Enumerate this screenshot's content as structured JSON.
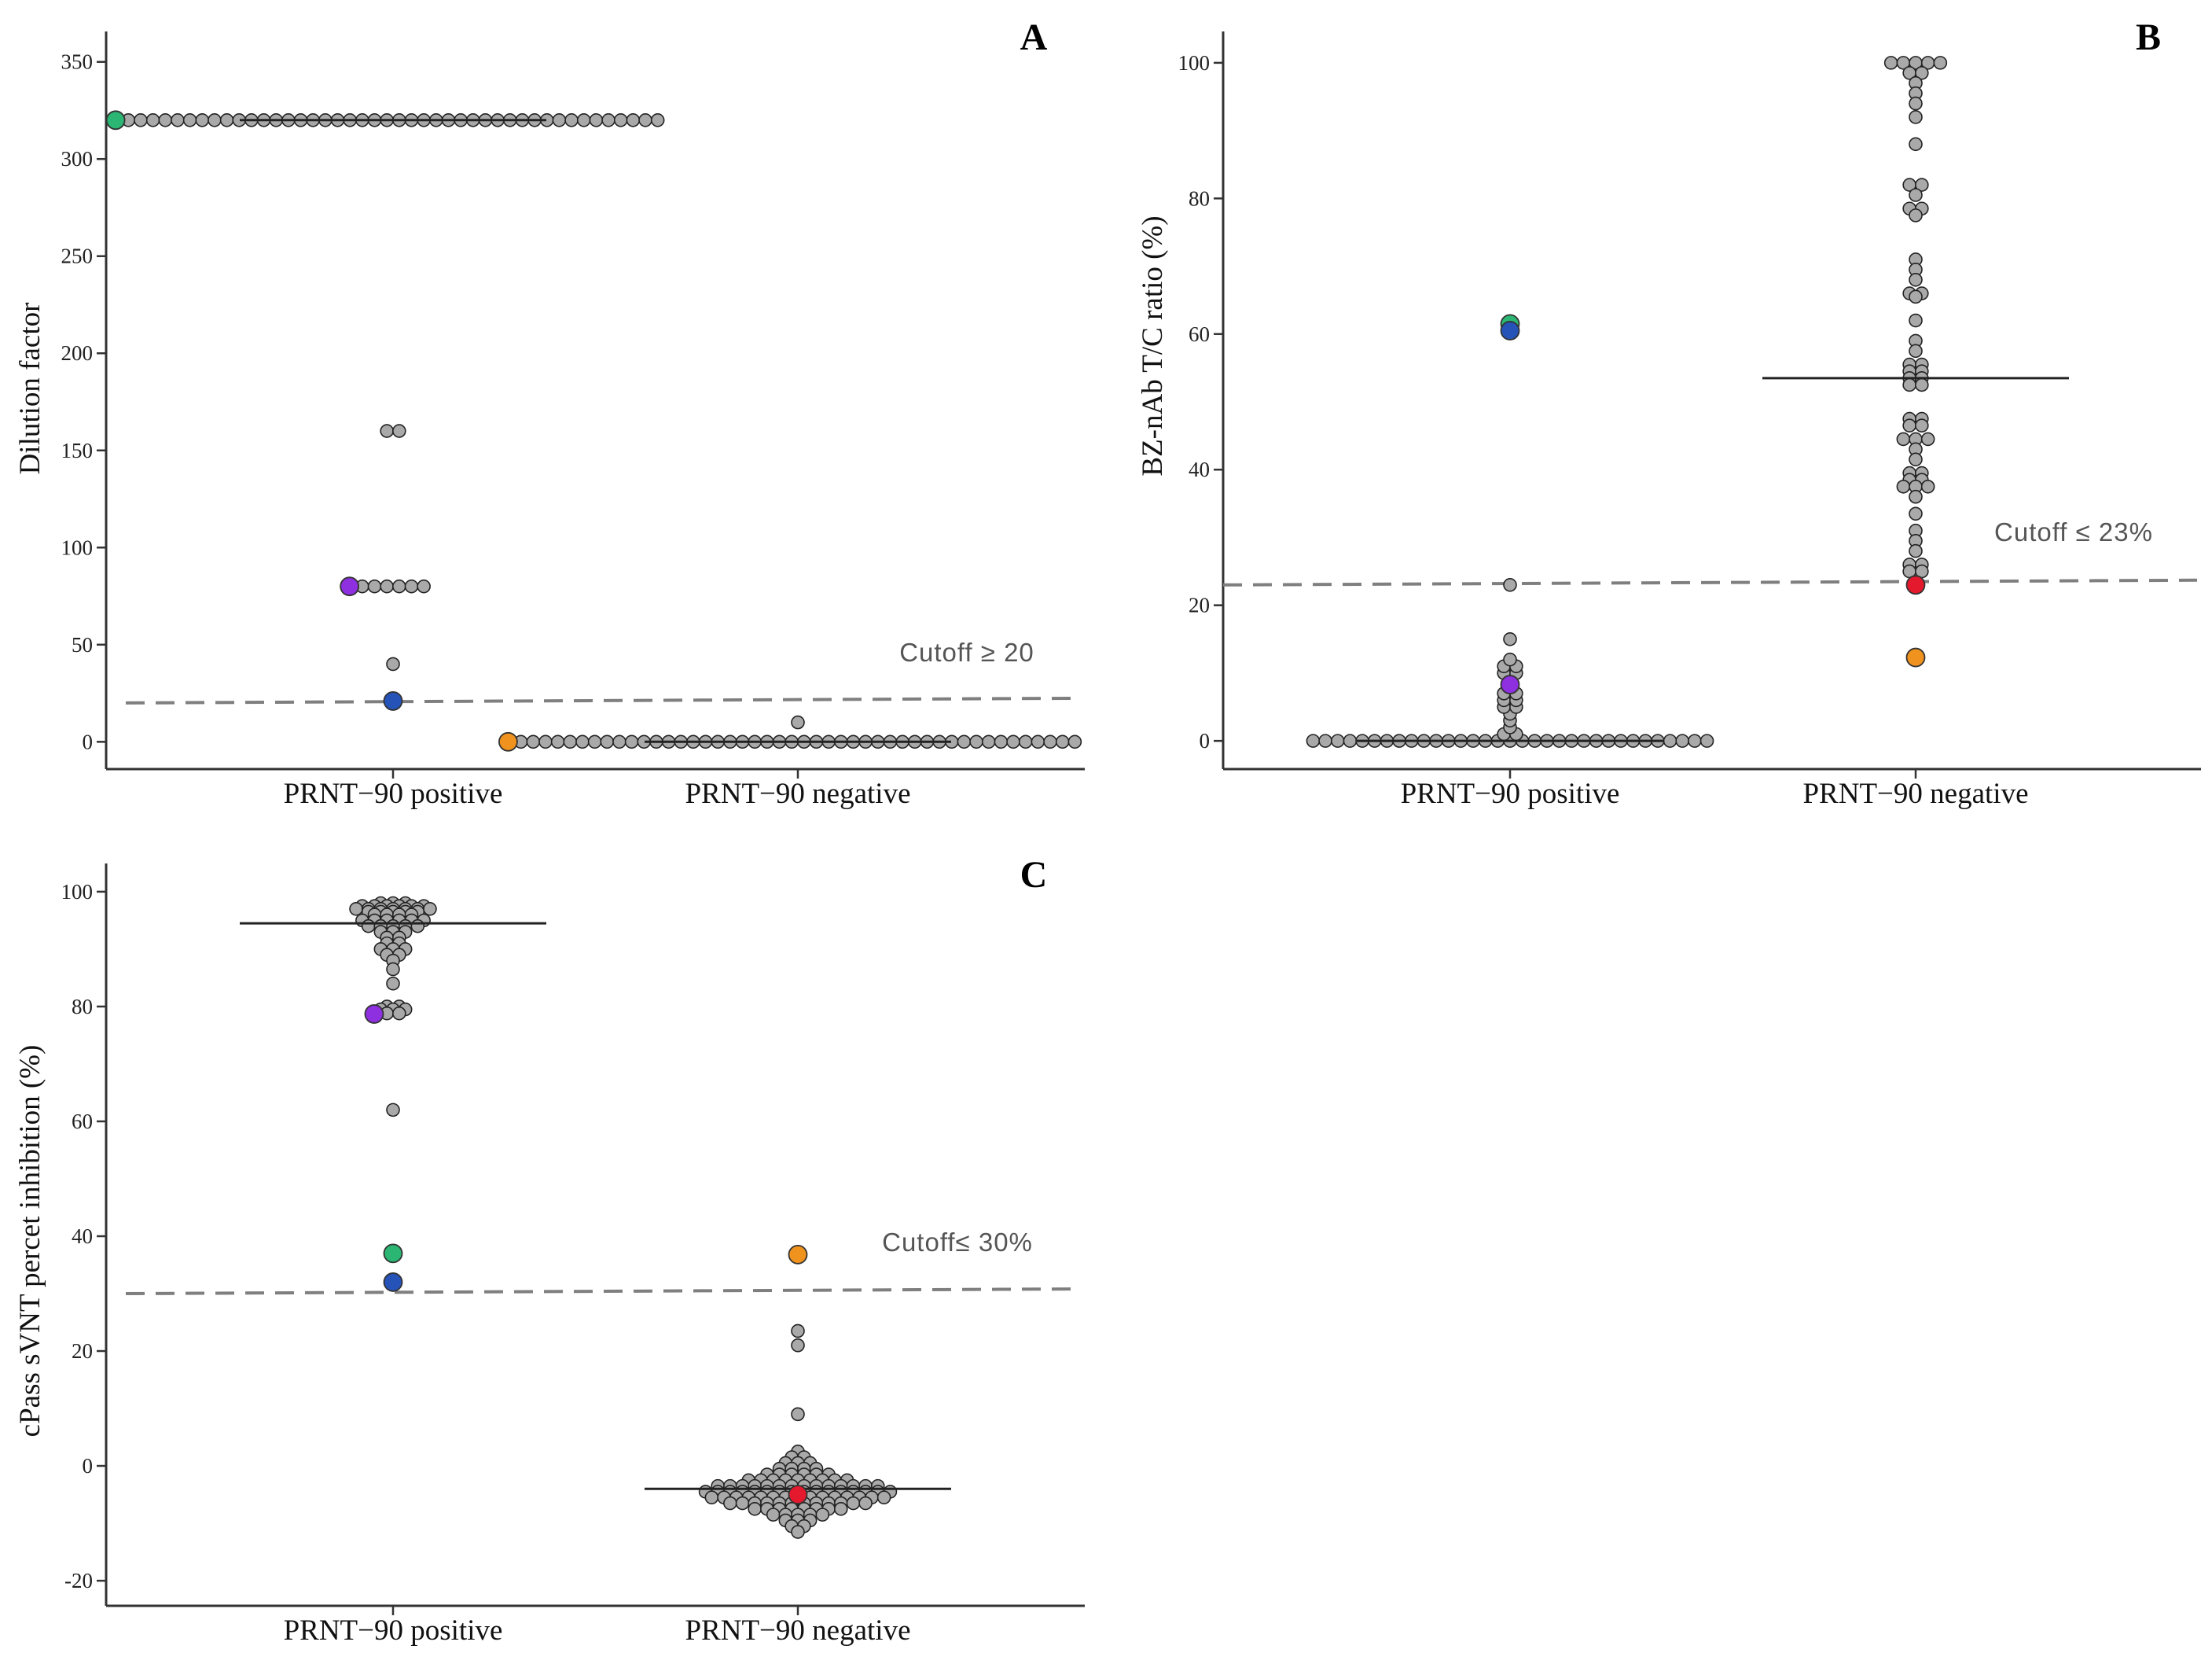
{
  "chart_data": [
    {
      "type": "scatter",
      "panel_label": "A",
      "ylabel": "Dilution factor",
      "xlabel": "",
      "categories": [
        "PRNT−90 positive",
        "PRNT−90 negative"
      ],
      "ylim": [
        -10,
        360
      ],
      "yticks": [
        0,
        50,
        100,
        150,
        200,
        250,
        300,
        350
      ],
      "ytick_labels": [
        "0",
        "50",
        "100",
        "150",
        "200",
        "250",
        "300",
        "350"
      ],
      "cutoff": {
        "value": 20,
        "label": "Cutoff ≥ 20",
        "style": "dashed"
      },
      "medians": [
        320,
        0
      ],
      "groups": [
        {
          "name": "PRNT−90 positive",
          "points": [
            {
              "v": 320,
              "n": 44
            },
            {
              "v": 160,
              "n": 2
            },
            {
              "v": 80,
              "n": 6
            },
            {
              "v": 40,
              "n": 1
            },
            {
              "v": 20,
              "n": 1
            }
          ]
        },
        {
          "name": "PRNT−90 negative",
          "points": [
            {
              "v": 0,
              "n": 46
            },
            {
              "v": 10,
              "n": 1
            }
          ]
        }
      ],
      "highlights": [
        {
          "group": 0,
          "value": 320,
          "color": "#2bb673",
          "side": "left"
        },
        {
          "group": 0,
          "value": 80,
          "color": "#8e2fe0",
          "side": "left"
        },
        {
          "group": 0,
          "value": 21,
          "color": "#2553b8",
          "side": "center"
        },
        {
          "group": 1,
          "value": 0,
          "color": "#f0931e",
          "side": "left"
        }
      ]
    },
    {
      "type": "scatter",
      "panel_label": "B",
      "ylabel": "BZ-nAb T/C ratio (%)",
      "xlabel": "",
      "categories": [
        "PRNT−90 positive",
        "PRNT−90 negative"
      ],
      "ylim": [
        -3,
        103
      ],
      "yticks": [
        0,
        20,
        40,
        60,
        80,
        100
      ],
      "ytick_labels": [
        "0",
        "20",
        "40",
        "60",
        "80",
        "100"
      ],
      "cutoff": {
        "value": 23,
        "label": "Cutoff ≤ 23%",
        "style": "dashed"
      },
      "medians": [
        0,
        53.5
      ],
      "groups": [
        {
          "name": "PRNT−90 positive",
          "points": [
            {
              "v": 0,
              "n": 33
            },
            {
              "v": 1,
              "n": 2
            },
            {
              "v": 2,
              "n": 1
            },
            {
              "v": 3,
              "n": 1
            },
            {
              "v": 4,
              "n": 1
            },
            {
              "v": 5,
              "n": 2
            },
            {
              "v": 6,
              "n": 2
            },
            {
              "v": 7,
              "n": 2
            },
            {
              "v": 9,
              "n": 1
            },
            {
              "v": 10,
              "n": 2
            },
            {
              "v": 11,
              "n": 2
            },
            {
              "v": 12,
              "n": 1
            },
            {
              "v": 15,
              "n": 1
            },
            {
              "v": 23,
              "n": 1
            }
          ]
        },
        {
          "name": "PRNT−90 negative",
          "points": [
            {
              "v": 100,
              "n": 5
            },
            {
              "v": 98.5,
              "n": 2
            },
            {
              "v": 97,
              "n": 1
            },
            {
              "v": 95.5,
              "n": 1
            },
            {
              "v": 94,
              "n": 1
            },
            {
              "v": 92,
              "n": 1
            },
            {
              "v": 88,
              "n": 1
            },
            {
              "v": 82,
              "n": 2
            },
            {
              "v": 80.5,
              "n": 1
            },
            {
              "v": 78.5,
              "n": 2
            },
            {
              "v": 77.5,
              "n": 1
            },
            {
              "v": 71,
              "n": 1
            },
            {
              "v": 69.5,
              "n": 1
            },
            {
              "v": 68,
              "n": 1
            },
            {
              "v": 66,
              "n": 2
            },
            {
              "v": 65.5,
              "n": 1
            },
            {
              "v": 62,
              "n": 1
            },
            {
              "v": 59,
              "n": 1
            },
            {
              "v": 57.5,
              "n": 1
            },
            {
              "v": 55.5,
              "n": 2
            },
            {
              "v": 54.5,
              "n": 2
            },
            {
              "v": 53.5,
              "n": 2
            },
            {
              "v": 52.5,
              "n": 2
            },
            {
              "v": 47.5,
              "n": 2
            },
            {
              "v": 46.5,
              "n": 2
            },
            {
              "v": 44.5,
              "n": 3
            },
            {
              "v": 43,
              "n": 1
            },
            {
              "v": 41.5,
              "n": 1
            },
            {
              "v": 39.5,
              "n": 2
            },
            {
              "v": 38.5,
              "n": 2
            },
            {
              "v": 37.5,
              "n": 3
            },
            {
              "v": 36,
              "n": 1
            },
            {
              "v": 33.5,
              "n": 1
            },
            {
              "v": 31,
              "n": 1
            },
            {
              "v": 29.5,
              "n": 1
            },
            {
              "v": 28,
              "n": 1
            },
            {
              "v": 26,
              "n": 2
            },
            {
              "v": 25,
              "n": 2
            }
          ]
        }
      ],
      "highlights": [
        {
          "group": 0,
          "value": 61.5,
          "color": "#2bb673",
          "side": "center"
        },
        {
          "group": 0,
          "value": 60.5,
          "color": "#2553b8",
          "side": "center"
        },
        {
          "group": 0,
          "value": 8.3,
          "color": "#8e2fe0",
          "side": "center"
        },
        {
          "group": 1,
          "value": 23,
          "color": "#e5192d",
          "side": "center"
        },
        {
          "group": 1,
          "value": 12.3,
          "color": "#f0931e",
          "side": "center"
        }
      ]
    },
    {
      "type": "scatter",
      "panel_label": "C",
      "ylabel": "cPass sVNT percet inhibition (%)",
      "xlabel": "",
      "categories": [
        "PRNT−90 positive",
        "PRNT−90 negative"
      ],
      "ylim": [
        -23,
        103
      ],
      "yticks": [
        -20,
        0,
        20,
        40,
        60,
        80,
        100
      ],
      "ytick_labels": [
        "-20",
        "0",
        "20",
        "40",
        "60",
        "80",
        "100"
      ],
      "cutoff": {
        "value": 30,
        "label": "Cutoff≤ 30%",
        "style": "dashed"
      },
      "medians": [
        94.5,
        -4
      ],
      "groups": [
        {
          "name": "PRNT−90 positive",
          "points": [
            {
              "v": 98,
              "n": 3
            },
            {
              "v": 97.5,
              "n": 6
            },
            {
              "v": 97,
              "n": 7
            },
            {
              "v": 96.5,
              "n": 5
            },
            {
              "v": 96,
              "n": 4
            },
            {
              "v": 95,
              "n": 6
            },
            {
              "v": 94,
              "n": 5
            },
            {
              "v": 93,
              "n": 3
            },
            {
              "v": 92,
              "n": 2
            },
            {
              "v": 91,
              "n": 2
            },
            {
              "v": 90,
              "n": 3
            },
            {
              "v": 89,
              "n": 2
            },
            {
              "v": 88,
              "n": 1
            },
            {
              "v": 86.5,
              "n": 1
            },
            {
              "v": 84,
              "n": 1
            },
            {
              "v": 80,
              "n": 2
            },
            {
              "v": 79.5,
              "n": 3
            },
            {
              "v": 78.8,
              "n": 2
            },
            {
              "v": 62,
              "n": 1
            }
          ]
        },
        {
          "name": "PRNT−90 negative",
          "points": [
            {
              "v": 23.5,
              "n": 1
            },
            {
              "v": 21,
              "n": 1
            },
            {
              "v": 9,
              "n": 1
            },
            {
              "v": 2.5,
              "n": 1
            },
            {
              "v": 1.5,
              "n": 2
            },
            {
              "v": 0.5,
              "n": 3
            },
            {
              "v": -0.5,
              "n": 4
            },
            {
              "v": -1.5,
              "n": 6
            },
            {
              "v": -2.5,
              "n": 9
            },
            {
              "v": -3.5,
              "n": 14
            },
            {
              "v": -4.5,
              "n": 16
            },
            {
              "v": -5.5,
              "n": 15
            },
            {
              "v": -6.5,
              "n": 12
            },
            {
              "v": -7.5,
              "n": 8
            },
            {
              "v": -8.5,
              "n": 5
            },
            {
              "v": -9.5,
              "n": 3
            },
            {
              "v": -10.5,
              "n": 2
            },
            {
              "v": -11.5,
              "n": 1
            }
          ]
        }
      ],
      "highlights": [
        {
          "group": 0,
          "value": 78.7,
          "color": "#8e2fe0",
          "side": "left"
        },
        {
          "group": 0,
          "value": 37,
          "color": "#2bb673",
          "side": "center"
        },
        {
          "group": 0,
          "value": 32,
          "color": "#2553b8",
          "side": "center"
        },
        {
          "group": 1,
          "value": 36.8,
          "color": "#f0931e",
          "side": "center"
        },
        {
          "group": 1,
          "value": -5,
          "color": "#e5192d",
          "side": "center"
        }
      ]
    }
  ],
  "style": {
    "point_fill": "#a9a9a9",
    "point_stroke": "#222222",
    "axis_color": "#333333",
    "median_color": "#222222",
    "cutoff_color": "#7f7f7f"
  }
}
